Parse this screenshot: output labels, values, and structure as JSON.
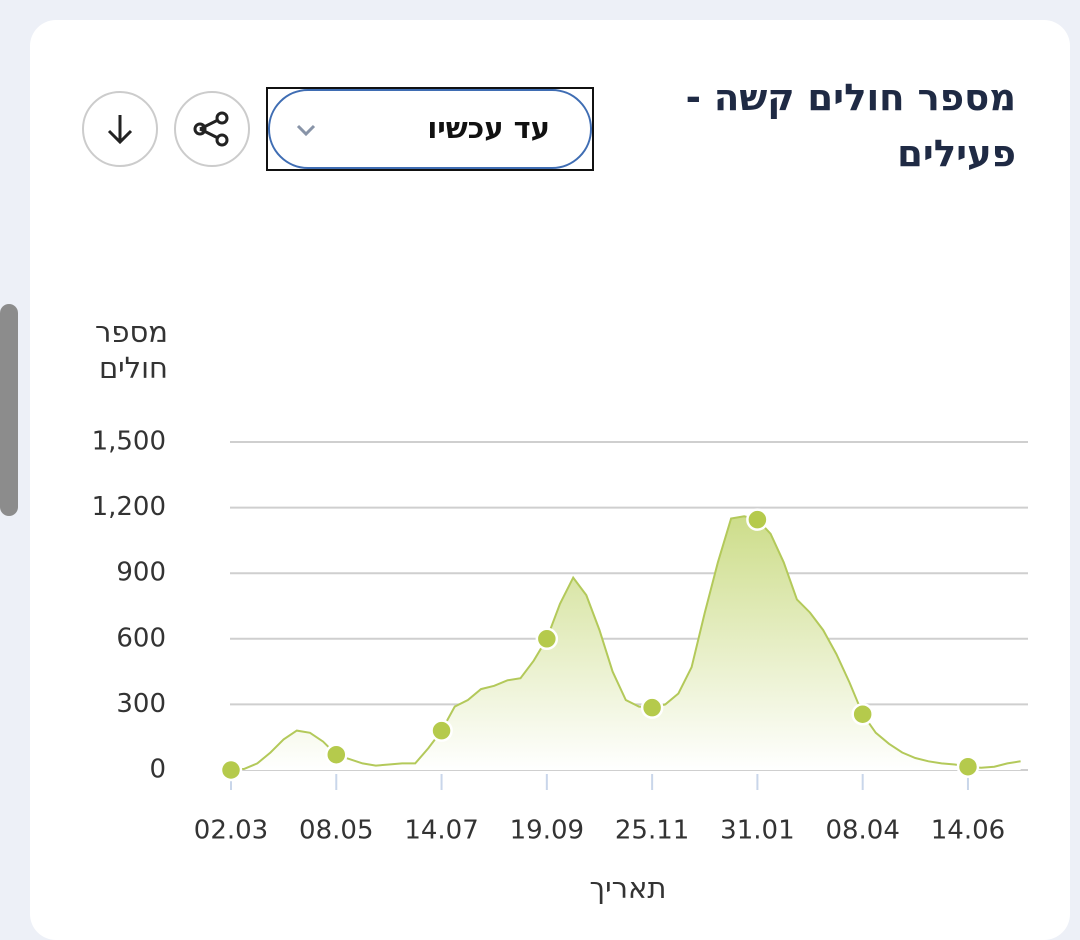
{
  "header": {
    "title": "מספר חולים קשה - פעילים",
    "range_select": "עד עכשיו"
  },
  "chart_data": {
    "type": "area",
    "y_label": "מספר חולים",
    "x_label": "תאריך",
    "categories": [
      "02.03",
      null,
      null,
      null,
      null,
      null,
      null,
      null,
      "08.05",
      null,
      null,
      null,
      null,
      null,
      null,
      null,
      "14.07",
      null,
      null,
      null,
      null,
      null,
      null,
      null,
      "19.09",
      null,
      null,
      null,
      null,
      null,
      null,
      null,
      "25.11",
      null,
      null,
      null,
      null,
      null,
      null,
      null,
      "31.01",
      null,
      null,
      null,
      null,
      null,
      null,
      null,
      "08.04",
      null,
      null,
      null,
      null,
      null,
      null,
      null,
      "14.06",
      null,
      null,
      null,
      null
    ],
    "values": [
      0,
      5,
      30,
      80,
      140,
      180,
      170,
      130,
      70,
      50,
      30,
      20,
      25,
      30,
      30,
      100,
      180,
      290,
      320,
      370,
      385,
      410,
      420,
      500,
      600,
      760,
      880,
      800,
      640,
      450,
      320,
      290,
      285,
      300,
      350,
      470,
      720,
      950,
      1150,
      1160,
      1145,
      1080,
      950,
      780,
      720,
      640,
      530,
      400,
      255,
      170,
      120,
      80,
      55,
      40,
      30,
      25,
      15,
      10,
      15,
      30,
      40
    ],
    "color": "#b3c95a",
    "marker_color": "#b5ca4c",
    "ylim": [
      0,
      1500
    ],
    "yticks": [
      0,
      300,
      600,
      900,
      {
        "value": 1200,
        "label": "1,200"
      },
      {
        "value": 1500,
        "label": "1,500"
      }
    ],
    "grid": true
  }
}
